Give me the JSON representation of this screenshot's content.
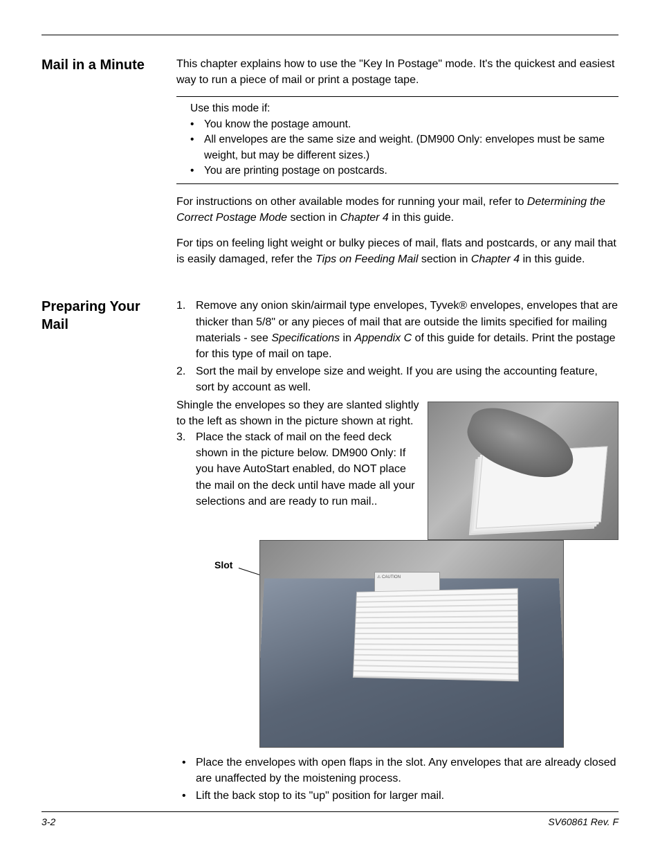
{
  "section1": {
    "heading": "Mail in a Minute",
    "intro": "This chapter explains how to use the \"Key In Postage\" mode. It's the quickest and easiest way to run a piece of mail or print a postage tape.",
    "box_lead": "Use this mode if:",
    "box_items": [
      "You know the postage amount.",
      "All envelopes are the same size and weight. (DM900 Only: envelopes must be same weight, but may be different sizes.)",
      "You are printing postage on postcards."
    ],
    "para2_a": "For instructions on other available modes for running your mail, refer to ",
    "para2_b": "Determining the Correct Postage Mode",
    "para2_c": " section in ",
    "para2_d": "Chapter 4",
    "para2_e": " in this guide.",
    "para3_a": "For tips on feeling light weight or bulky pieces of mail, flats and postcards, or any mail that is easily damaged, refer the ",
    "para3_b": "Tips on Feeding Mail",
    "para3_c": " section in ",
    "para3_d": "Chapter 4",
    "para3_e": " in this guide."
  },
  "section2": {
    "heading": "Preparing Your Mail",
    "step1_a": "Remove any onion skin/airmail type envelopes, Tyvek® envelopes, envelopes that are thicker than 5/8\" or any pieces of mail that are outside the limits specified for mailing materials - see ",
    "step1_b": "Specifications",
    "step1_c": " in ",
    "step1_d": "Appendix C",
    "step1_e": " of this guide for details. Print the postage for this type of mail on tape.",
    "step2": "Sort the mail by envelope size and weight. If you are using the accounting feature, sort by account as well.",
    "shingle": "Shingle the envelopes so they are slanted slightly to the left as shown in the picture shown at right.",
    "step3": "Place the stack of mail on the feed deck shown in the picture below. DM900 Only:  If you have AutoStart enabled, do NOT place the mail on the deck until have made all your selections and are ready to run mail..",
    "slot_label": "Slot",
    "bullet1": "Place the envelopes with open flaps in the slot. Any envelopes that are already closed are unaffected by the moistening process.",
    "bullet2": "Lift the back stop to its \"up\" position for larger mail."
  },
  "footer": {
    "left": "3-2",
    "right": "SV60861 Rev. F"
  }
}
